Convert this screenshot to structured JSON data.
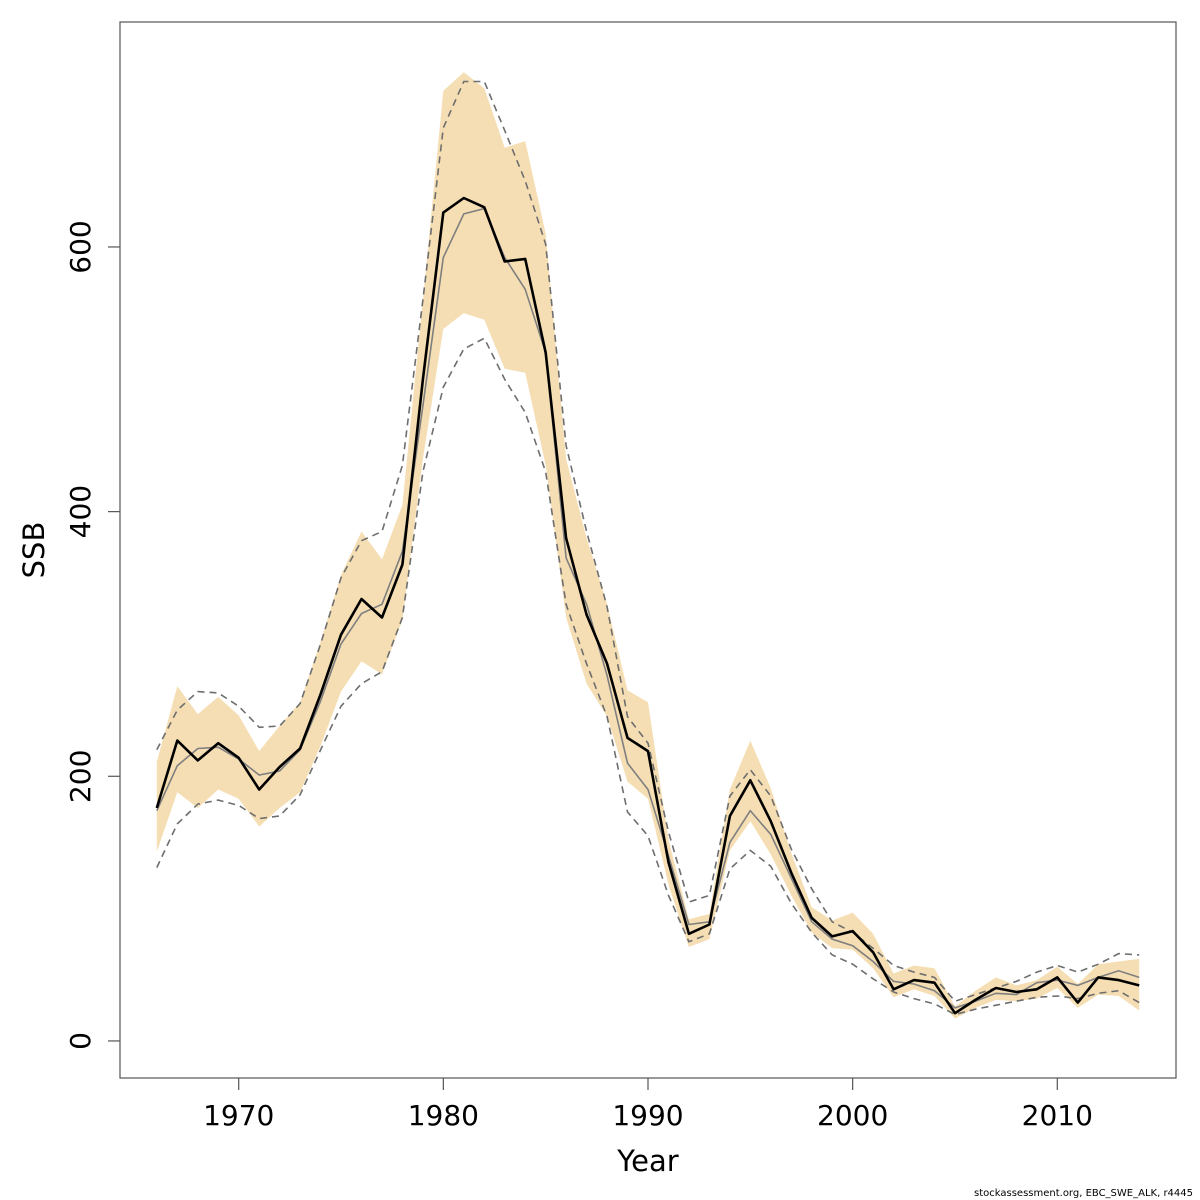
{
  "chart_data": {
    "type": "line",
    "title": "",
    "xlabel": "Year",
    "ylabel": "SSB",
    "xlim": [
      1964.2,
      2015.8
    ],
    "ylim": [
      -28,
      770
    ],
    "x_ticks": [
      1970,
      1980,
      1990,
      2000,
      2010
    ],
    "y_ticks": [
      0,
      200,
      400,
      600
    ],
    "grid": false,
    "legend": "none",
    "colors": {
      "band": "#f5deb3",
      "main": "#000000",
      "comparison": "#7f7f7f",
      "dashed": "#6e6e6e"
    },
    "x": [
      1966,
      1967,
      1968,
      1969,
      1970,
      1971,
      1972,
      1973,
      1974,
      1975,
      1976,
      1977,
      1978,
      1979,
      1980,
      1981,
      1982,
      1983,
      1984,
      1985,
      1986,
      1987,
      1988,
      1989,
      1990,
      1991,
      1992,
      1993,
      1994,
      1995,
      1996,
      1997,
      1998,
      1999,
      2000,
      2001,
      2002,
      2003,
      2004,
      2005,
      2006,
      2007,
      2008,
      2009,
      2010,
      2011,
      2012,
      2013,
      2014
    ],
    "series": [
      {
        "role": "estimate",
        "style": "solid-thick",
        "values": [
          176,
          227,
          212,
          225,
          214,
          190,
          207,
          221,
          262,
          307,
          334,
          320,
          360,
          500,
          626,
          637,
          630,
          589,
          591,
          520,
          380,
          322,
          285,
          229,
          219,
          135,
          81,
          88,
          170,
          197,
          166,
          127,
          93,
          79,
          83,
          67,
          39,
          46,
          44,
          21,
          31,
          40,
          37,
          39,
          48,
          29,
          48,
          46,
          42
        ]
      },
      {
        "role": "comparison",
        "style": "solid-thin",
        "values": [
          174,
          208,
          221,
          222,
          213,
          201,
          204,
          220,
          257,
          300,
          323,
          330,
          370,
          480,
          592,
          625,
          629,
          592,
          568,
          520,
          365,
          330,
          276,
          210,
          190,
          140,
          88,
          90,
          150,
          174,
          156,
          123,
          90,
          77,
          72,
          60,
          45,
          43,
          38,
          25,
          30,
          36,
          35,
          44,
          46,
          42,
          48,
          53,
          48
        ]
      },
      {
        "role": "upper-bound",
        "style": "dashed",
        "values": [
          220,
          250,
          264,
          263,
          253,
          237,
          238,
          255,
          300,
          350,
          378,
          385,
          435,
          560,
          690,
          725,
          725,
          688,
          650,
          602,
          450,
          385,
          328,
          245,
          225,
          158,
          105,
          110,
          185,
          205,
          185,
          145,
          115,
          90,
          82,
          70,
          57,
          52,
          48,
          30,
          35,
          40,
          45,
          52,
          57,
          52,
          58,
          66,
          65
        ]
      },
      {
        "role": "lower-bound",
        "style": "dashed",
        "values": [
          131,
          164,
          179,
          182,
          178,
          168,
          170,
          186,
          220,
          253,
          270,
          279,
          320,
          430,
          494,
          523,
          531,
          500,
          475,
          430,
          330,
          285,
          245,
          173,
          155,
          110,
          75,
          81,
          130,
          144,
          132,
          104,
          82,
          65,
          58,
          47,
          37,
          32,
          28,
          20,
          24,
          27,
          30,
          33,
          34,
          32,
          36,
          38,
          29
        ]
      },
      {
        "role": "band-upper",
        "style": "fill",
        "values": [
          211,
          268,
          247,
          260,
          246,
          219,
          238,
          256,
          302,
          352,
          385,
          364,
          405,
          560,
          718,
          732,
          720,
          675,
          680,
          610,
          440,
          380,
          330,
          265,
          256,
          152,
          92,
          96,
          190,
          227,
          191,
          142,
          101,
          91,
          97,
          81,
          51,
          57,
          55,
          26,
          38,
          48,
          42,
          46,
          56,
          43,
          58,
          60,
          62
        ]
      },
      {
        "role": "band-lower",
        "style": "fill",
        "values": [
          143,
          188,
          176,
          190,
          183,
          162,
          176,
          188,
          223,
          264,
          287,
          277,
          318,
          440,
          538,
          550,
          545,
          508,
          505,
          435,
          320,
          270,
          245,
          196,
          183,
          118,
          71,
          77,
          144,
          166,
          141,
          110,
          82,
          70,
          69,
          55,
          33,
          39,
          34,
          17,
          25,
          31,
          30,
          32,
          40,
          25,
          35,
          34,
          23
        ]
      }
    ],
    "footer_text": "stockassessment.org, EBC_SWE_ALK, r4445"
  }
}
